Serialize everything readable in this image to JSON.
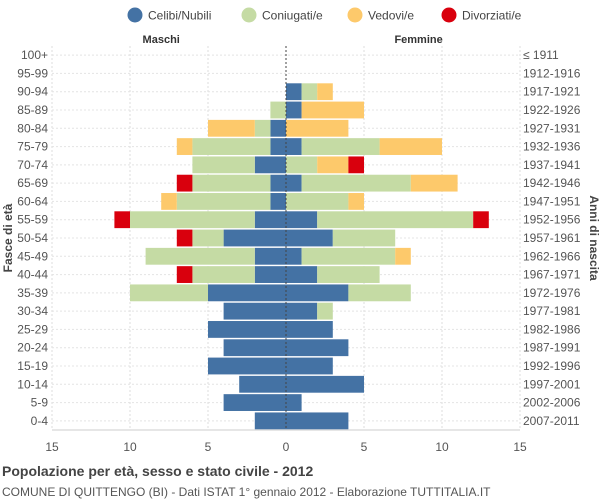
{
  "chart_data": {
    "type": "bar",
    "orientation": "horizontal-population-pyramid",
    "title": "Popolazione per età, sesso e stato civile - 2012",
    "subtitle": "COMUNE DI QUITTENGO (BI) - Dati ISTAT 1° gennaio 2012 - Elaborazione TUTTITALIA.IT",
    "ylabel_left": "Fasce di età",
    "ylabel_right": "Anni di nascita",
    "left_side_label": "Maschi",
    "right_side_label": "Femmine",
    "xlim": [
      -15,
      15
    ],
    "x_ticks": [
      -15,
      -10,
      -5,
      0,
      5,
      10,
      15
    ],
    "x_tick_labels": [
      "15",
      "10",
      "5",
      "0",
      "5",
      "10",
      "15"
    ],
    "grid": true,
    "legend_position": "top",
    "series_order": [
      "Celibi/Nubili",
      "Coniugati/e",
      "Vedovi/e",
      "Divorziati/e"
    ],
    "series_colors": {
      "Celibi/Nubili": "#4472a4",
      "Coniugati/e": "#c5dba4",
      "Vedovi/e": "#fdc96b",
      "Divorziati/e": "#d9000d"
    },
    "categories": [
      "100+",
      "95-99",
      "90-94",
      "85-89",
      "80-84",
      "75-79",
      "70-74",
      "65-69",
      "60-64",
      "55-59",
      "50-54",
      "45-49",
      "40-44",
      "35-39",
      "30-34",
      "25-29",
      "20-24",
      "15-19",
      "10-14",
      "5-9",
      "0-4"
    ],
    "birth_years": [
      "≤ 1911",
      "1912-1916",
      "1917-1921",
      "1922-1926",
      "1927-1931",
      "1932-1936",
      "1937-1941",
      "1942-1946",
      "1947-1951",
      "1952-1956",
      "1957-1961",
      "1962-1966",
      "1967-1971",
      "1972-1976",
      "1977-1981",
      "1982-1986",
      "1987-1991",
      "1992-1996",
      "1997-2001",
      "2002-2006",
      "2007-2011"
    ],
    "males": {
      "Celibi/Nubili": [
        0,
        0,
        0,
        0,
        1,
        1,
        2,
        1,
        1,
        2,
        4,
        2,
        2,
        5,
        4,
        5,
        4,
        5,
        3,
        4,
        2
      ],
      "Coniugati/e": [
        0,
        0,
        0,
        1,
        1,
        5,
        4,
        5,
        6,
        8,
        2,
        7,
        4,
        5,
        0,
        0,
        0,
        0,
        0,
        0,
        0
      ],
      "Vedovi/e": [
        0,
        0,
        0,
        0,
        3,
        1,
        0,
        0,
        1,
        0,
        0,
        0,
        0,
        0,
        0,
        0,
        0,
        0,
        0,
        0,
        0
      ],
      "Divorziati/e": [
        0,
        0,
        0,
        0,
        0,
        0,
        0,
        1,
        0,
        1,
        1,
        0,
        1,
        0,
        0,
        0,
        0,
        0,
        0,
        0,
        0
      ]
    },
    "females": {
      "Celibi/Nubili": [
        0,
        0,
        1,
        1,
        0,
        1,
        0,
        1,
        0,
        2,
        3,
        1,
        2,
        4,
        2,
        3,
        4,
        3,
        5,
        1,
        4
      ],
      "Coniugati/e": [
        0,
        0,
        1,
        0,
        0,
        5,
        2,
        7,
        4,
        10,
        4,
        6,
        4,
        4,
        1,
        0,
        0,
        0,
        0,
        0,
        0
      ],
      "Vedovi/e": [
        0,
        0,
        1,
        4,
        4,
        4,
        2,
        3,
        1,
        0,
        0,
        1,
        0,
        0,
        0,
        0,
        0,
        0,
        0,
        0,
        0
      ],
      "Divorziati/e": [
        0,
        0,
        0,
        0,
        0,
        0,
        1,
        0,
        0,
        1,
        0,
        0,
        0,
        0,
        0,
        0,
        0,
        0,
        0,
        0,
        0
      ]
    }
  }
}
